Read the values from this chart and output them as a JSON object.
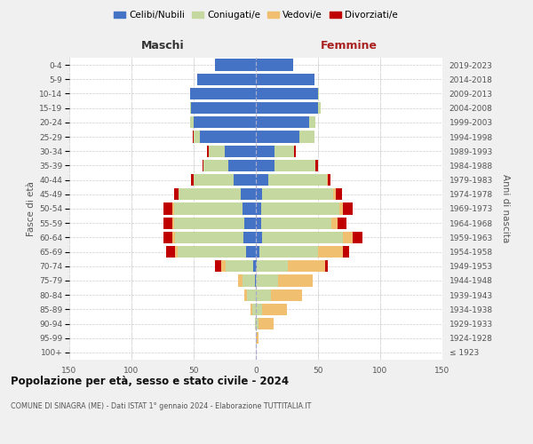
{
  "age_groups": [
    "100+",
    "95-99",
    "90-94",
    "85-89",
    "80-84",
    "75-79",
    "70-74",
    "65-69",
    "60-64",
    "55-59",
    "50-54",
    "45-49",
    "40-44",
    "35-39",
    "30-34",
    "25-29",
    "20-24",
    "15-19",
    "10-14",
    "5-9",
    "0-4"
  ],
  "birth_years": [
    "≤ 1923",
    "1924-1928",
    "1929-1933",
    "1934-1938",
    "1939-1943",
    "1944-1948",
    "1949-1953",
    "1954-1958",
    "1959-1963",
    "1964-1968",
    "1969-1973",
    "1974-1978",
    "1979-1983",
    "1984-1988",
    "1989-1993",
    "1994-1998",
    "1999-2003",
    "2004-2008",
    "2009-2013",
    "2014-2018",
    "2019-2023"
  ],
  "maschi": {
    "celibi": [
      0,
      0,
      0,
      0,
      0,
      1,
      2,
      8,
      10,
      9,
      11,
      12,
      18,
      22,
      25,
      45,
      50,
      52,
      53,
      47,
      33
    ],
    "coniugati": [
      0,
      0,
      1,
      3,
      7,
      10,
      22,
      55,
      55,
      57,
      55,
      50,
      32,
      20,
      13,
      5,
      3,
      1,
      0,
      0,
      0
    ],
    "vedovi": [
      0,
      0,
      0,
      1,
      2,
      3,
      4,
      2,
      2,
      1,
      1,
      0,
      0,
      0,
      0,
      0,
      0,
      0,
      0,
      0,
      0
    ],
    "divorziati": [
      0,
      0,
      0,
      0,
      0,
      0,
      5,
      7,
      7,
      7,
      7,
      4,
      2,
      1,
      1,
      1,
      0,
      0,
      0,
      0,
      0
    ]
  },
  "femmine": {
    "nubili": [
      0,
      0,
      0,
      0,
      0,
      0,
      1,
      3,
      5,
      4,
      4,
      5,
      10,
      15,
      15,
      35,
      43,
      50,
      50,
      47,
      30
    ],
    "coniugate": [
      0,
      0,
      2,
      5,
      12,
      18,
      25,
      47,
      65,
      57,
      63,
      57,
      47,
      33,
      16,
      12,
      5,
      2,
      1,
      0,
      0
    ],
    "vedove": [
      0,
      2,
      12,
      20,
      25,
      28,
      30,
      20,
      8,
      5,
      3,
      2,
      1,
      0,
      0,
      0,
      0,
      0,
      0,
      0,
      0
    ],
    "divorziate": [
      0,
      0,
      0,
      0,
      0,
      0,
      2,
      5,
      8,
      7,
      8,
      5,
      2,
      2,
      1,
      0,
      0,
      0,
      0,
      0,
      0
    ]
  },
  "colors": {
    "celibi_nubili": "#4472C4",
    "coniugati_e": "#C5D8A0",
    "vedovi_e": "#F0C070",
    "divorziati_e": "#C00000"
  },
  "xlim": 150,
  "title": "Popolazione per età, sesso e stato civile - 2024",
  "subtitle": "COMUNE DI SINAGRA (ME) - Dati ISTAT 1° gennaio 2024 - Elaborazione TUTTITALIA.IT",
  "xlabel_left": "Maschi",
  "xlabel_right": "Femmine",
  "ylabel_left": "Fasce di età",
  "ylabel_right": "Anni di nascita",
  "bg_color": "#f0f0f0",
  "plot_bg_color": "#ffffff",
  "xticks": [
    -150,
    -100,
    -50,
    0,
    50,
    100,
    150
  ]
}
